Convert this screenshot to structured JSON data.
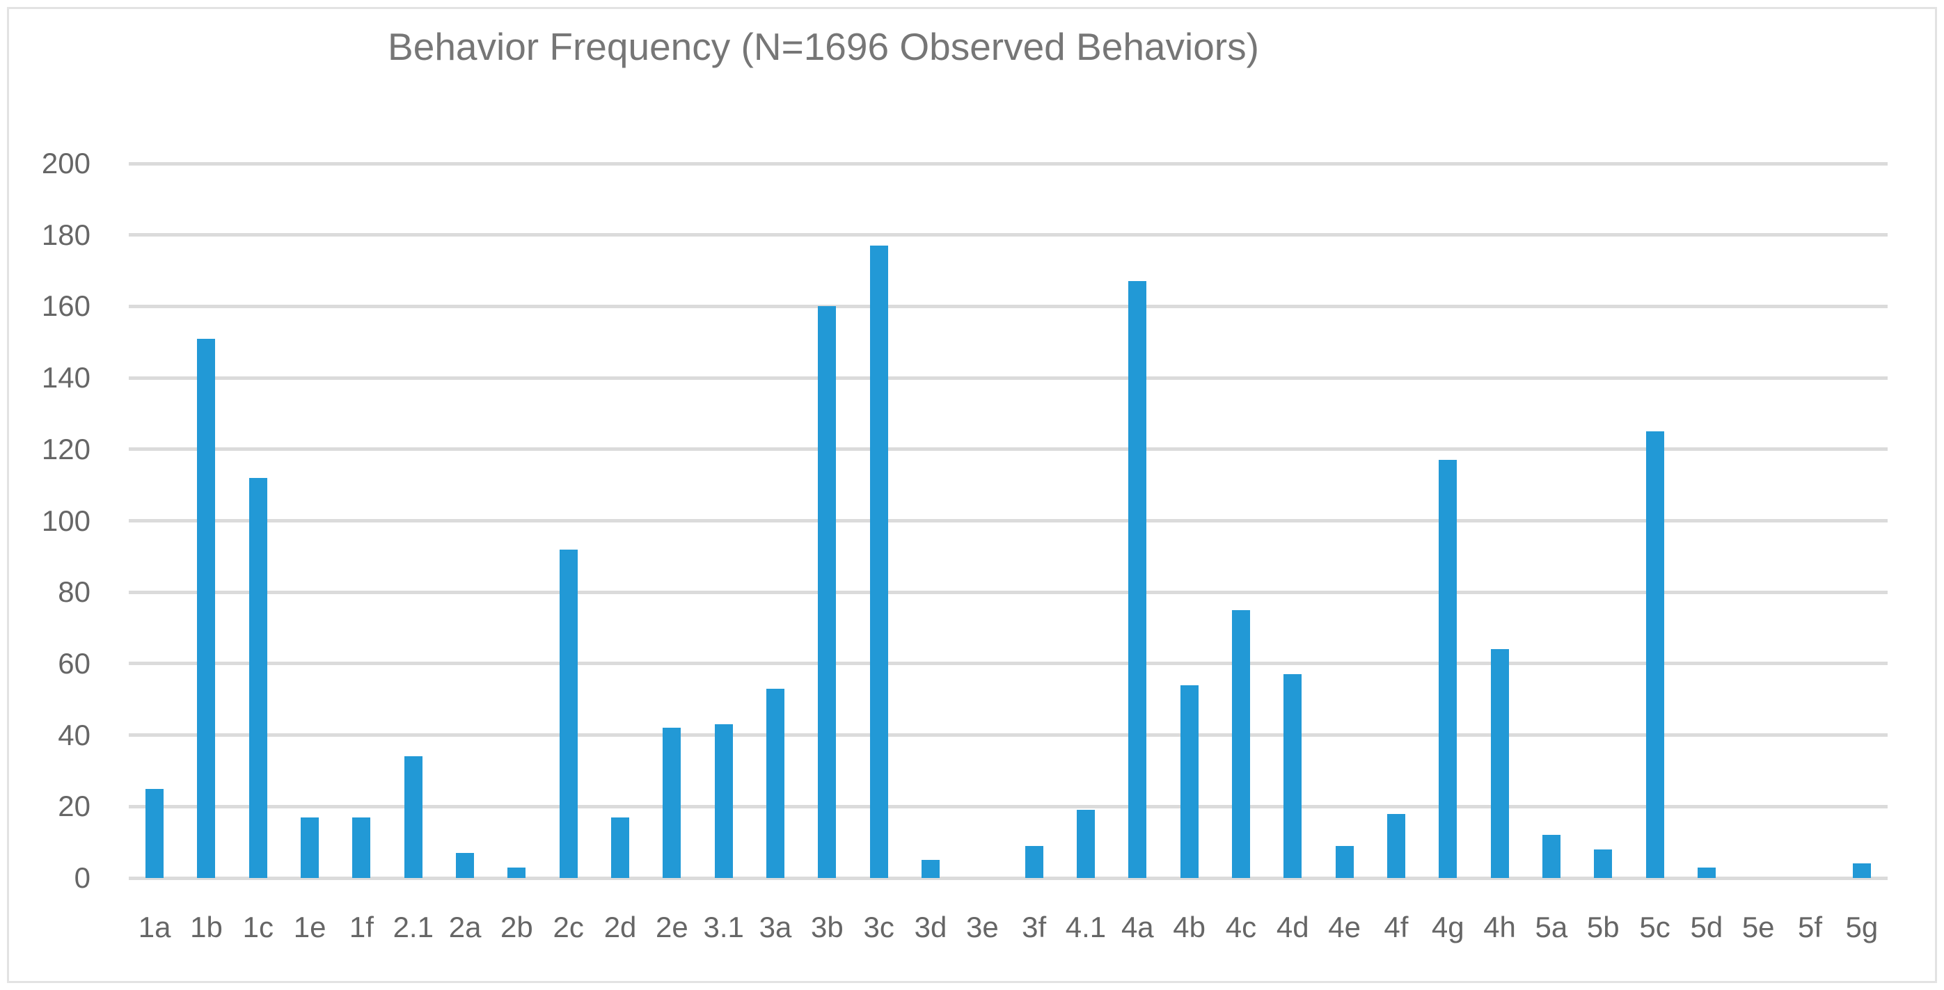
{
  "chart_data": {
    "type": "bar",
    "title": "Behavior Frequency (N=1696 Observed Behaviors)",
    "categories": [
      "1a",
      "1b",
      "1c",
      "1e",
      "1f",
      "2.1",
      "2a",
      "2b",
      "2c",
      "2d",
      "2e",
      "3.1",
      "3a",
      "3b",
      "3c",
      "3d",
      "3e",
      "3f",
      "4.1",
      "4a",
      "4b",
      "4c",
      "4d",
      "4e",
      "4f",
      "4g",
      "4h",
      "5a",
      "5b",
      "5c",
      "5d",
      "5e",
      "5f",
      "5g"
    ],
    "values": [
      25,
      151,
      112,
      17,
      17,
      34,
      7,
      3,
      92,
      17,
      42,
      43,
      53,
      160,
      177,
      5,
      0,
      9,
      19,
      167,
      54,
      75,
      57,
      9,
      18,
      117,
      64,
      12,
      8,
      125,
      3,
      0,
      0,
      4
    ],
    "total_observed": 1696,
    "xlabel": "",
    "ylabel": "",
    "ylim": [
      0,
      200
    ],
    "yticks": [
      0,
      20,
      40,
      60,
      80,
      100,
      120,
      140,
      160,
      180,
      200
    ],
    "grid": true,
    "legend": "none",
    "colors": {
      "bar": "#2299d6",
      "gridline": "#dbdbdb",
      "axis_text": "#666666",
      "title_text": "#767676",
      "frame_border": "#e3e3e3",
      "background": "#ffffff"
    }
  }
}
